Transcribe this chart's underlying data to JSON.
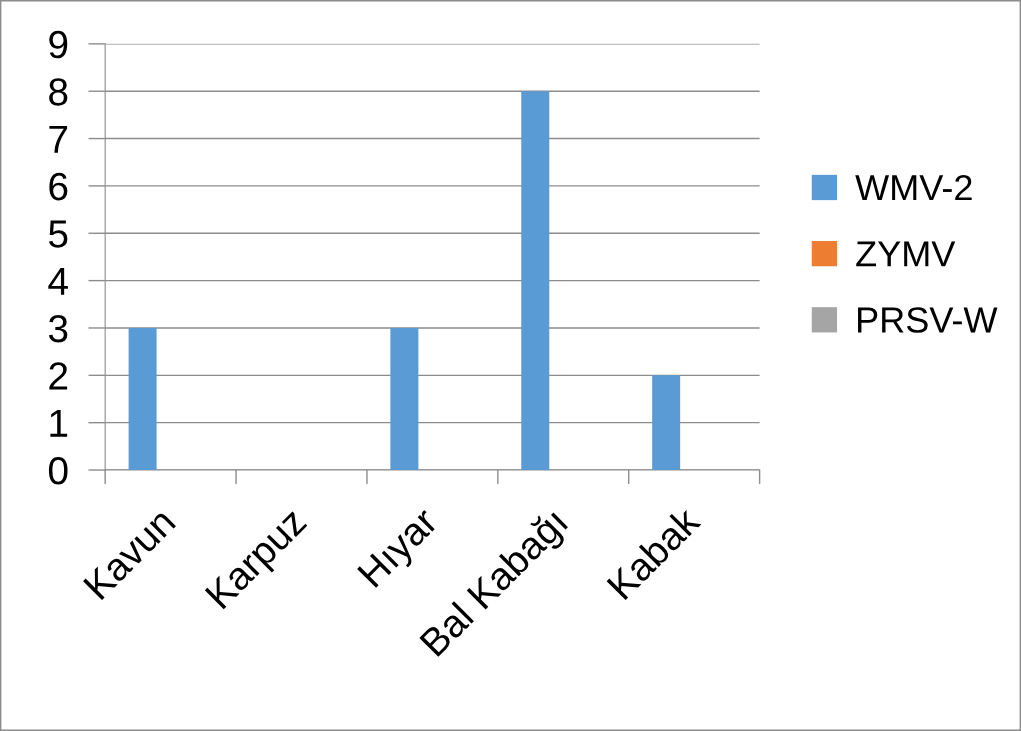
{
  "chart_data": {
    "type": "bar",
    "categories": [
      "Kavun",
      "Karpuz",
      "Hıyar",
      "Bal Kabağı",
      "Kabak"
    ],
    "series": [
      {
        "name": "WMV-2",
        "color": "#5b9bd5",
        "values": [
          3,
          0,
          3,
          8,
          2
        ]
      },
      {
        "name": "ZYMV",
        "color": "#ed7d31",
        "values": [
          0,
          0,
          0,
          0,
          0
        ]
      },
      {
        "name": "PRSV-W",
        "color": "#a5a5a5",
        "values": [
          0,
          0,
          0,
          0,
          0
        ]
      }
    ],
    "ylim": [
      0,
      9
    ],
    "yticks": [
      0,
      1,
      2,
      3,
      4,
      5,
      6,
      7,
      8,
      9
    ],
    "grid": "y",
    "legend": "right"
  }
}
